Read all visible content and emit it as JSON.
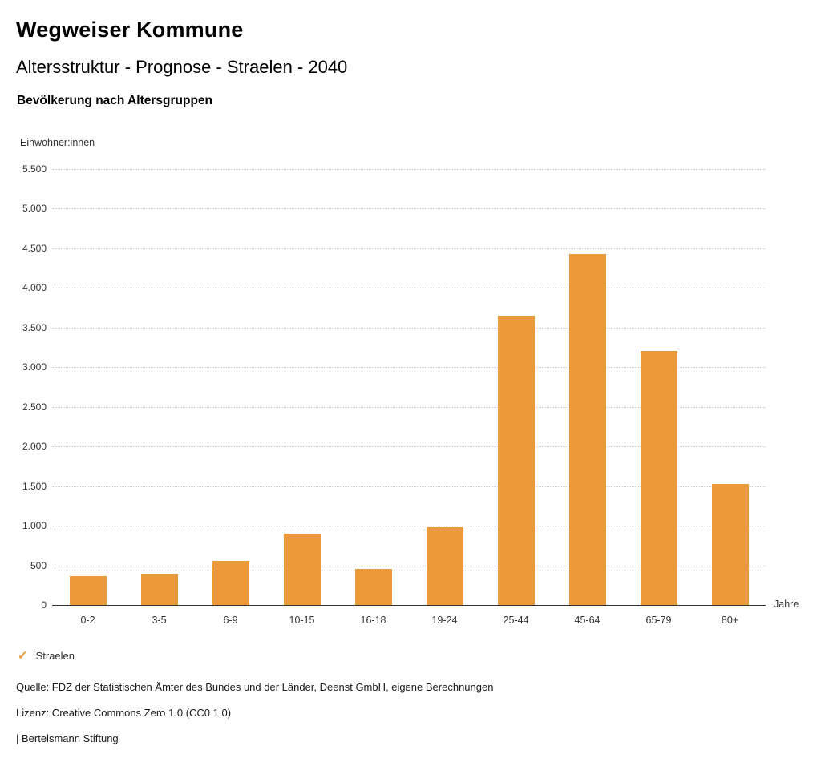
{
  "header": {
    "title": "Wegweiser Kommune",
    "subtitle": "Altersstruktur - Prognose - Straelen - 2040",
    "chart_heading": "Bevölkerung nach Altersgruppen"
  },
  "chart_data": {
    "type": "bar",
    "categories": [
      "0-2",
      "3-5",
      "6-9",
      "10-15",
      "16-18",
      "19-24",
      "25-44",
      "45-64",
      "65-79",
      "80+"
    ],
    "series": [
      {
        "name": "Straelen",
        "values": [
          360,
          390,
          560,
          900,
          460,
          980,
          3650,
          4430,
          3210,
          1530
        ]
      }
    ],
    "ylabel": "Einwohner:innen",
    "xlabel": "Jahre",
    "ylim": [
      0,
      5500
    ],
    "ytick_step": 500,
    "grid": true,
    "bar_color": "#EA9A3B"
  },
  "legend": {
    "items": [
      {
        "label": "Straelen",
        "color": "#EA9A3B",
        "marker": "check"
      }
    ]
  },
  "footer": {
    "source": "Quelle: FDZ der Statistischen Ämter des Bundes und der Länder, Deenst GmbH, eigene Berechnungen",
    "license": "Lizenz: Creative Commons Zero 1.0 (CC0 1.0)",
    "attribution": "| Bertelsmann Stiftung"
  }
}
